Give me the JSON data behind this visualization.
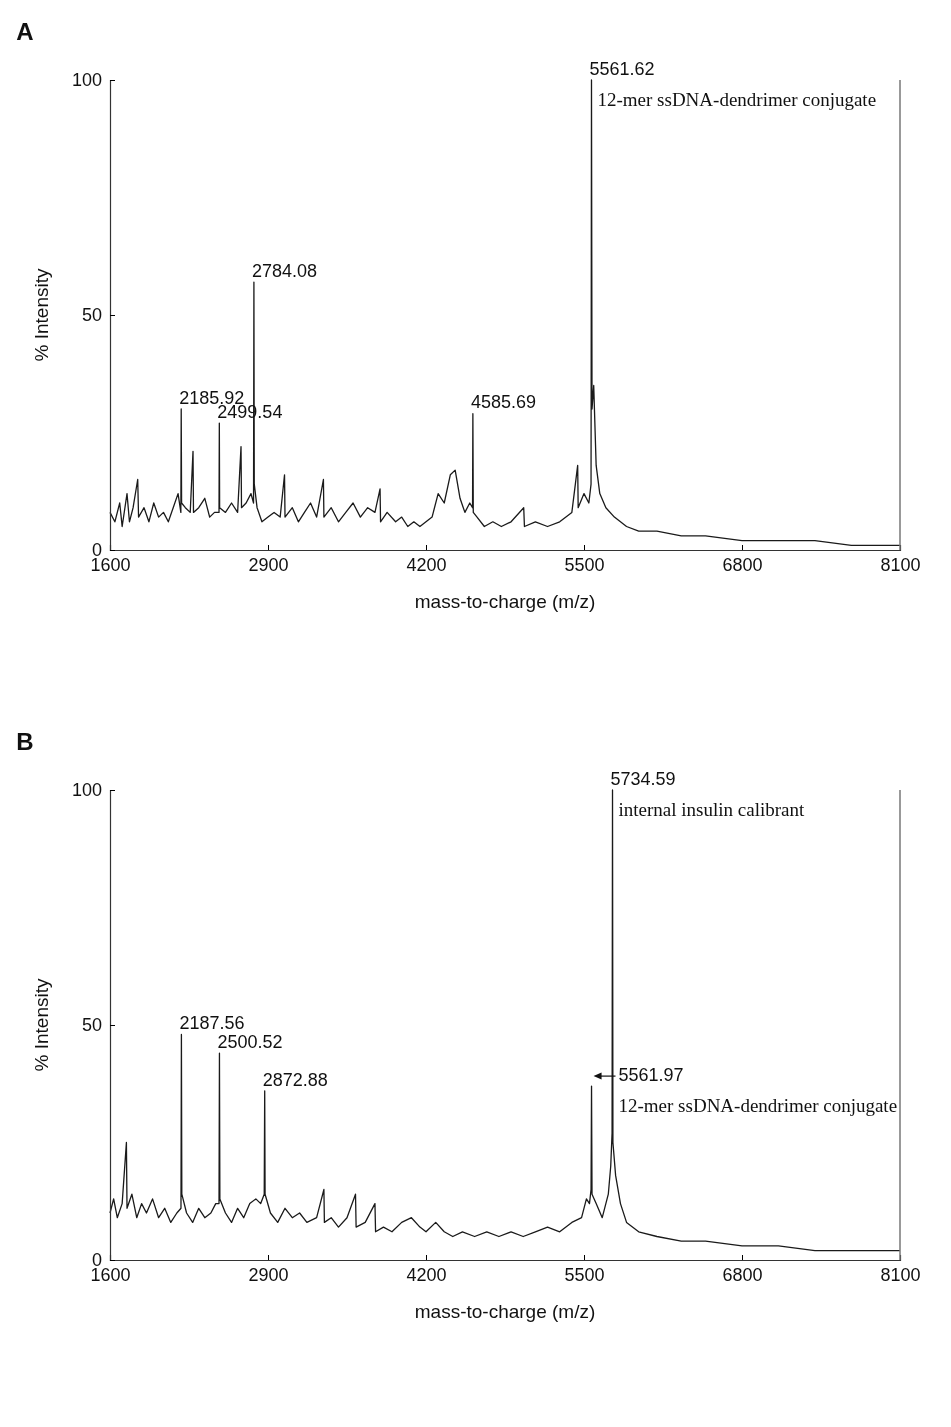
{
  "chart_data": [
    {
      "type": "line",
      "title": "A",
      "xlabel": "mass-to-charge (m/z)",
      "ylabel": "% Intensity",
      "xlim": [
        1600,
        8100
      ],
      "xticks": [
        1600,
        2900,
        4200,
        5500,
        6800,
        8100
      ],
      "ylim": [
        0,
        100
      ],
      "yticks": [
        0,
        50,
        100
      ],
      "grid": false,
      "x": [
        1600,
        1640,
        1680,
        1700,
        1740,
        1760,
        1790,
        1828,
        1835,
        1880,
        1920,
        1960,
        2000,
        2040,
        2080,
        2120,
        2160,
        2183,
        2185.92,
        2189,
        2220,
        2260,
        2283,
        2287,
        2330,
        2380,
        2420,
        2460,
        2497,
        2499.54,
        2502,
        2550,
        2600,
        2650,
        2678,
        2682,
        2720,
        2760,
        2781,
        2784.08,
        2787,
        2810,
        2850,
        2900,
        2950,
        3000,
        3036,
        3040,
        3100,
        3150,
        3200,
        3250,
        3300,
        3356,
        3360,
        3420,
        3480,
        3540,
        3600,
        3660,
        3720,
        3780,
        3822,
        3826,
        3880,
        3950,
        4000,
        4050,
        4100,
        4150,
        4200,
        4250,
        4300,
        4350,
        4400,
        4440,
        4480,
        4520,
        4560,
        4583,
        4585.69,
        4589,
        4620,
        4680,
        4750,
        4820,
        4900,
        5004,
        5010,
        5100,
        5200,
        5300,
        5400,
        5448,
        5452,
        5500,
        5540,
        5558,
        5561.62,
        5566,
        5580,
        5600,
        5630,
        5680,
        5750,
        5850,
        5950,
        6100,
        6300,
        6500,
        6800,
        7100,
        7400,
        7700,
        8000,
        8100
      ],
      "series": [
        {
          "color": "#1a1a1a",
          "values": [
            8,
            6,
            10,
            5,
            12,
            6,
            9,
            15,
            7,
            9,
            6,
            10,
            7,
            8,
            6,
            9,
            12,
            8,
            30,
            10,
            9,
            8,
            21,
            8,
            9,
            11,
            7,
            8,
            8,
            27,
            9,
            8,
            10,
            8,
            22,
            9,
            10,
            12,
            10,
            57,
            14,
            9,
            6,
            7,
            8,
            7,
            16,
            7,
            9,
            6,
            8,
            10,
            7,
            15,
            7,
            9,
            6,
            8,
            10,
            7,
            9,
            8,
            13,
            6,
            8,
            6,
            7,
            5,
            6,
            5,
            6,
            7,
            12,
            10,
            16,
            17,
            11,
            8,
            10,
            9,
            29,
            8,
            7,
            5,
            6,
            5,
            6,
            9,
            5,
            6,
            5,
            6,
            8,
            18,
            9,
            12,
            10,
            14,
            100,
            30,
            35,
            18,
            12,
            9,
            7,
            5,
            4,
            4,
            3,
            3,
            2,
            2,
            2,
            1,
            1,
            1
          ]
        }
      ],
      "annotations": [
        {
          "text": "5561.62",
          "x": 5561.62,
          "y": 100
        },
        {
          "text": "12-mer ssDNA-dendrimer conjugate",
          "x": 5561.62,
          "y": 100
        },
        {
          "text": "4585.69",
          "x": 4585.69,
          "y": 29
        },
        {
          "text": "2784.08",
          "x": 2784.08,
          "y": 57
        },
        {
          "text": "2499.54",
          "x": 2499.54,
          "y": 27
        },
        {
          "text": "2185.92",
          "x": 2185.92,
          "y": 30
        }
      ]
    },
    {
      "type": "line",
      "title": "B",
      "xlabel": "mass-to-charge (m/z)",
      "ylabel": "% Intensity",
      "xlim": [
        1600,
        8100
      ],
      "xticks": [
        1600,
        2900,
        4200,
        5500,
        6800,
        8100
      ],
      "ylim": [
        0,
        100
      ],
      "yticks": [
        0,
        50,
        100
      ],
      "grid": false,
      "x": [
        1600,
        1630,
        1660,
        1700,
        1735,
        1740,
        1780,
        1820,
        1860,
        1900,
        1950,
        2000,
        2050,
        2100,
        2150,
        2184,
        2187.56,
        2191,
        2230,
        2280,
        2330,
        2380,
        2430,
        2470,
        2497,
        2500.52,
        2504,
        2550,
        2600,
        2650,
        2700,
        2750,
        2800,
        2840,
        2869,
        2872.88,
        2876,
        2920,
        2980,
        3040,
        3100,
        3160,
        3220,
        3300,
        3360,
        3364,
        3420,
        3480,
        3550,
        3620,
        3625,
        3700,
        3780,
        3785,
        3850,
        3920,
        4000,
        4080,
        4150,
        4200,
        4280,
        4350,
        4420,
        4500,
        4600,
        4700,
        4800,
        4900,
        5000,
        5100,
        5200,
        5300,
        5400,
        5480,
        5520,
        5545,
        5558,
        5561.97,
        5566,
        5600,
        5650,
        5700,
        5720,
        5731,
        5734.59,
        5738,
        5760,
        5800,
        5850,
        5950,
        6100,
        6300,
        6500,
        6800,
        7100,
        7400,
        7700,
        8000,
        8100
      ],
      "series": [
        {
          "color": "#1a1a1a",
          "values": [
            10,
            13,
            9,
            12,
            25,
            11,
            14,
            9,
            12,
            10,
            13,
            9,
            11,
            8,
            10,
            11,
            48,
            14,
            10,
            8,
            11,
            9,
            10,
            12,
            12,
            44,
            13,
            10,
            8,
            11,
            9,
            12,
            13,
            12,
            14,
            36,
            14,
            10,
            8,
            11,
            9,
            10,
            8,
            9,
            15,
            8,
            9,
            7,
            9,
            14,
            7,
            8,
            12,
            6,
            7,
            6,
            8,
            9,
            7,
            6,
            8,
            6,
            5,
            6,
            5,
            6,
            5,
            6,
            5,
            6,
            7,
            6,
            8,
            9,
            13,
            12,
            15,
            37,
            14,
            12,
            9,
            14,
            20,
            27,
            100,
            25,
            18,
            12,
            8,
            6,
            5,
            4,
            4,
            3,
            3,
            2,
            2,
            2,
            2
          ]
        }
      ],
      "annotations": [
        {
          "text": "5734.59",
          "x": 5734.59,
          "y": 100
        },
        {
          "text": "internal insulin calibrant",
          "x": 5734.59,
          "y": 100
        },
        {
          "text": "5561.97",
          "x": 5561.97,
          "y": 37
        },
        {
          "text": "12-mer ssDNA-dendrimer conjugate",
          "x": 5561.97,
          "y": 37
        },
        {
          "text": "2872.88",
          "x": 2872.88,
          "y": 36
        },
        {
          "text": "2500.52",
          "x": 2500.52,
          "y": 44
        },
        {
          "text": "2187.56",
          "x": 2187.56,
          "y": 48
        }
      ]
    }
  ]
}
